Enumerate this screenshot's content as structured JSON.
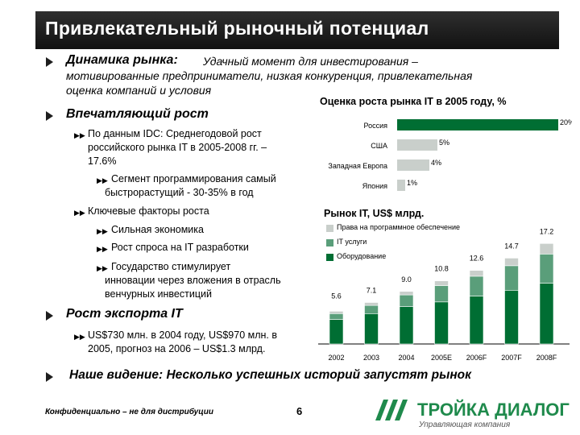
{
  "title": "Привлекательный рыночный потенциал",
  "bullets": {
    "dynamics_label": "Динамика рынка:",
    "dynamics_line1": "Удачный момент для инвестирования –",
    "dynamics_line2": "мотивированные предприниматели, низкая конкуренция, привлекательная",
    "dynamics_line3": "оценка компаний и условия",
    "growth_label": "Впечатляющий рост",
    "idc_line1": "По данным IDC: Среднегодовой рост",
    "idc_line2": "российского рынка IT в 2005-2008 гг. –",
    "idc_line3": "17.6%",
    "segment_line1": "Сегмент программирования самый",
    "segment_line2": "быстрорастущий - 30-35% в год",
    "factors_label": "Ключевые факторы роста",
    "factor1": "Сильная экономика",
    "factor2": "Рост спроса на IT разработки",
    "factor3_line1": "Государство стимулирует",
    "factor3_line2": "инновации через вложения в отрасль",
    "factor3_line3": "венчурных инвестиций",
    "export_label": "Рост экспорта IT",
    "export_line1": "US$730 млн. в 2004 году, US$970 млн. в",
    "export_line2": "2005, прогноз на 2006 – US$1.3 млрд.",
    "vision": "Наше видение: Несколько успешных историй запустят рынок"
  },
  "footer": {
    "confidential": "Конфиденциально – не для дистрибуции",
    "page_number": "6",
    "logo_text": "ТРОЙКА ДИАЛОГ",
    "logo_sub": "Управляющая компания"
  },
  "colors": {
    "dark_green": "#006e33",
    "mid_green": "#5a9e7a",
    "light_gray": "#c9cfcb",
    "title_bar": "#1a1a1a"
  },
  "chart_data": [
    {
      "type": "bar",
      "orientation": "horizontal",
      "title": "Оценка роста рынка IT в 2005 году, %",
      "categories": [
        "Россия",
        "США",
        "Западная Европа",
        "Япония"
      ],
      "values": [
        20,
        5,
        4,
        1
      ],
      "value_labels": [
        "20%",
        "5%",
        "4%",
        "1%"
      ],
      "bar_colors": [
        "#006e33",
        "#c9cfcb",
        "#c9cfcb",
        "#c9cfcb"
      ]
    },
    {
      "type": "bar",
      "stacked": true,
      "title": "Рынок IT, US$ млрд.",
      "categories": [
        "2002",
        "2003",
        "2004",
        "2005E",
        "2006F",
        "2007F",
        "2008F"
      ],
      "totals": [
        5.6,
        7.1,
        9.0,
        10.8,
        12.6,
        14.7,
        17.2
      ],
      "total_labels": [
        "5.6",
        "7.1",
        "9.0",
        "10.8",
        "12.6",
        "14.7",
        "17.2"
      ],
      "series": [
        {
          "name": "Оборудование",
          "color": "#006e33",
          "values": [
            4.2,
            5.2,
            6.4,
            7.2,
            8.2,
            9.2,
            10.4
          ]
        },
        {
          "name": "IT услуги",
          "color": "#5a9e7a",
          "values": [
            1.0,
            1.4,
            2.0,
            2.8,
            3.4,
            4.2,
            5.0
          ]
        },
        {
          "name": "Права на программное обеспечение",
          "color": "#c9cfcb",
          "values": [
            0.4,
            0.5,
            0.6,
            0.8,
            1.0,
            1.3,
            1.8
          ]
        }
      ]
    }
  ]
}
